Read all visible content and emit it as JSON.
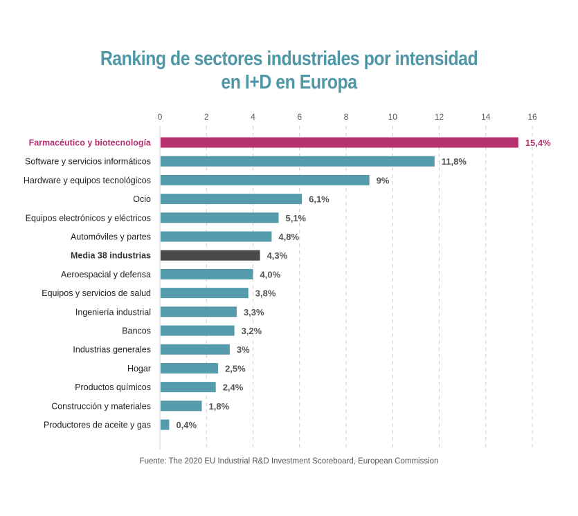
{
  "chart_data": {
    "type": "bar",
    "orientation": "horizontal",
    "title": "Ranking de sectores industriales por intensidad en I+D en Europa",
    "title_lines": [
      "Ranking de sectores industriales por intensidad",
      "en I+D en Europa"
    ],
    "xlabel": "",
    "ylabel": "",
    "xlim": [
      0,
      16
    ],
    "xticks": [
      0,
      2,
      4,
      6,
      8,
      10,
      12,
      14,
      16
    ],
    "xtick_labels": [
      "0",
      "2",
      "4",
      "6",
      "8",
      "10",
      "12",
      "14",
      "16"
    ],
    "axis_position": "top",
    "grid": "vertical dashed",
    "categories": [
      "Farmacéutico y biotecnología",
      "Software y servicios informáticos",
      "Hardware y equipos tecnológicos",
      "Ocio",
      "Equipos electrónicos y eléctricos",
      "Automóviles y partes",
      "Media 38 industrias",
      "Aeroespacial y defensa",
      "Equipos y servicios de salud",
      "Ingeniería industrial",
      "Bancos",
      "Industrias generales",
      "Hogar",
      "Productos químicos",
      "Construcción y materiales",
      "Productores de aceite y gas"
    ],
    "values": [
      15.4,
      11.8,
      9,
      6.1,
      5.1,
      4.8,
      4.3,
      4.0,
      3.8,
      3.3,
      3.2,
      3,
      2.5,
      2.4,
      1.8,
      0.4
    ],
    "value_labels": [
      "15,4%",
      "11,8%",
      "9%",
      "6,1%",
      "5,1%",
      "4,8%",
      "4,3%",
      "4,0%",
      "3,8%",
      "3,3%",
      "3,2%",
      "3%",
      "2,5%",
      "2,4%",
      "1,8%",
      "0,4%"
    ],
    "highlight_index": 0,
    "average_index": 6,
    "colors": {
      "default": "#569bab",
      "highlight": "#b5326f",
      "average": "#4a4a4a",
      "title": "#4f97a6",
      "grid": "#cccccc"
    },
    "source": "Fuente: The 2020 EU Industrial R&D Investment Scoreboard, European Commission"
  }
}
